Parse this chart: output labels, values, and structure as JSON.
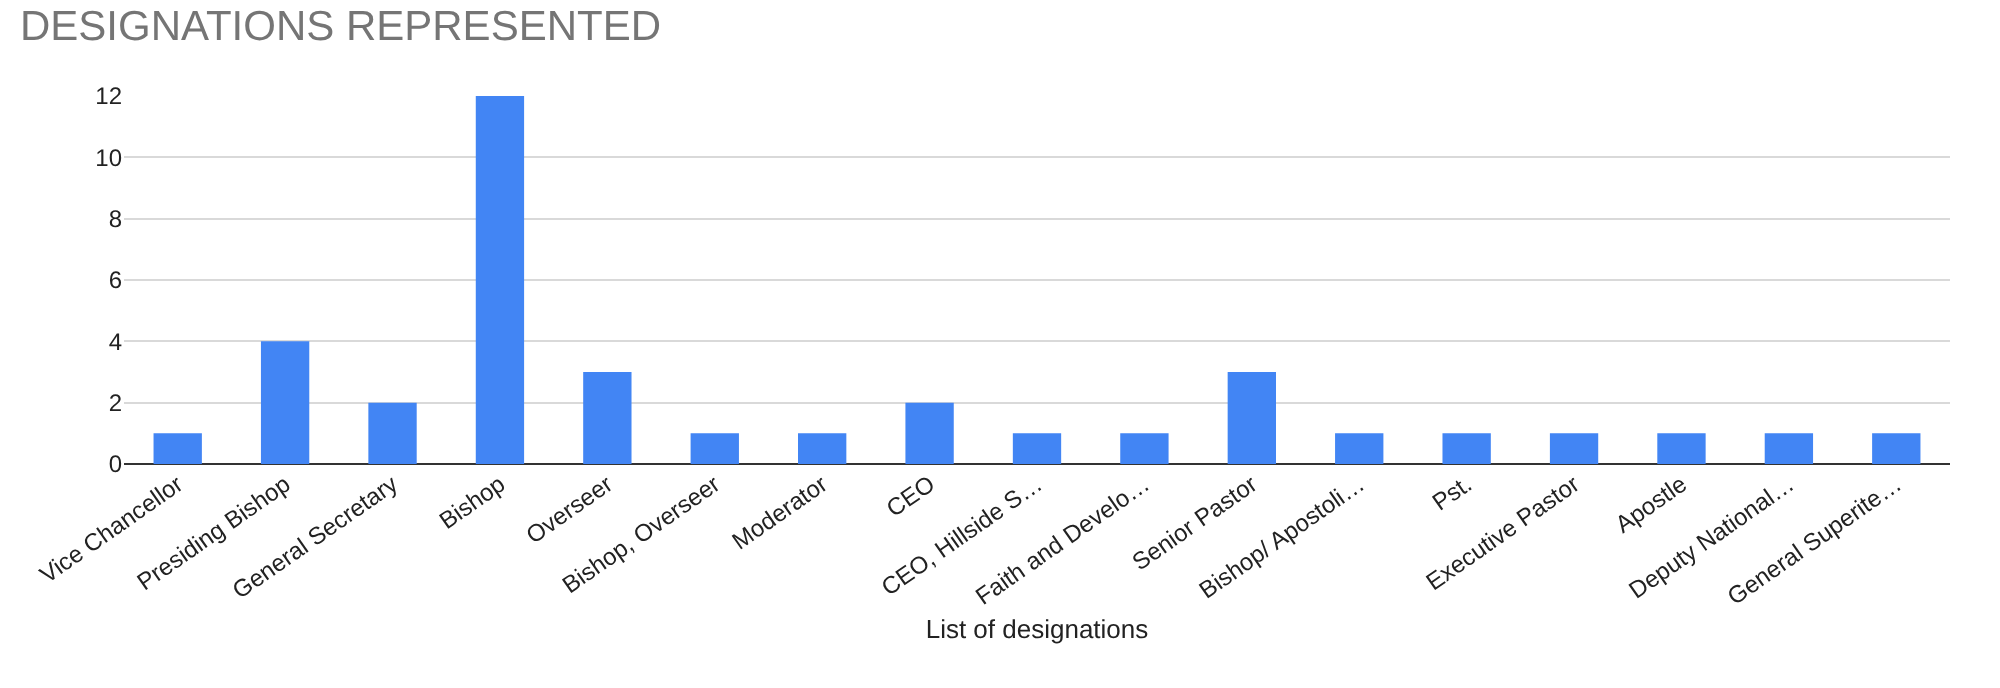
{
  "chart_data": {
    "type": "bar",
    "title": "DESIGNATIONS REPRESENTED",
    "xlabel": "List of designations",
    "categories": [
      "Vice Chancellor",
      "Presiding Bishop",
      "General Secretary",
      "Bishop",
      "Overseer",
      "Bishop, Overseer",
      "Moderator",
      "CEO",
      "CEO, Hillside S…",
      "Faith and Develo…",
      "Senior Pastor",
      "Bishop/ Apostoli…",
      "Pst.",
      "Executive Pastor",
      "Apostle",
      "Deputy National…",
      "General Superite…"
    ],
    "values": [
      1,
      4,
      2,
      12,
      3,
      1,
      1,
      2,
      1,
      1,
      3,
      1,
      1,
      1,
      1,
      1,
      1
    ],
    "color": "#4285f4",
    "ylim": [
      0,
      12
    ],
    "yticks": [
      0,
      2,
      4,
      6,
      8,
      10,
      12
    ],
    "grid": "y"
  }
}
